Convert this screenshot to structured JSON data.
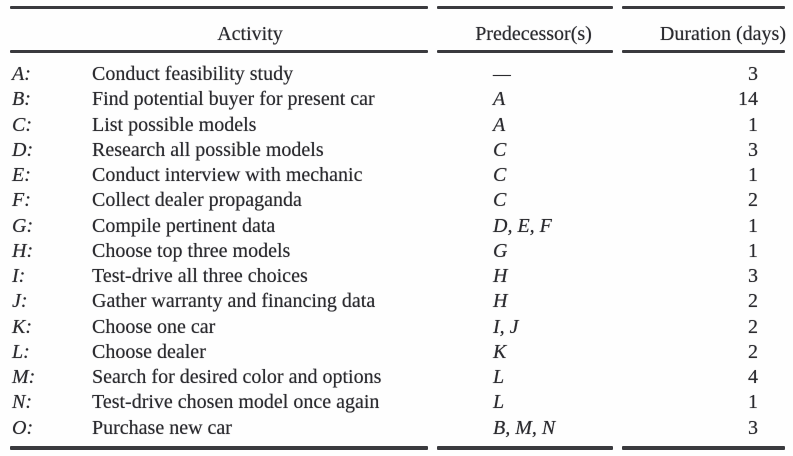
{
  "colors": {
    "text": "#2b2b2f",
    "rule": "#3a3a3e",
    "background": "#fefefe"
  },
  "table": {
    "headers": {
      "activity": "Activity",
      "predecessors": "Predecessor(s)",
      "duration": "Duration (days)"
    },
    "rows": [
      {
        "id": "A:",
        "description": "Conduct feasibility study",
        "predecessors": "—",
        "duration": "3"
      },
      {
        "id": "B:",
        "description": "Find potential buyer for present car",
        "predecessors": "A",
        "duration": "14"
      },
      {
        "id": "C:",
        "description": "List possible models",
        "predecessors": "A",
        "duration": "1"
      },
      {
        "id": "D:",
        "description": "Research all possible models",
        "predecessors": "C",
        "duration": "3"
      },
      {
        "id": "E:",
        "description": "Conduct interview with mechanic",
        "predecessors": "C",
        "duration": "1"
      },
      {
        "id": "F:",
        "description": "Collect dealer propaganda",
        "predecessors": "C",
        "duration": "2"
      },
      {
        "id": "G:",
        "description": "Compile pertinent data",
        "predecessors": "D, E, F",
        "duration": "1"
      },
      {
        "id": "H:",
        "description": "Choose top three models",
        "predecessors": "G",
        "duration": "1"
      },
      {
        "id": "I:",
        "description": "Test-drive all three choices",
        "predecessors": "H",
        "duration": "3"
      },
      {
        "id": "J:",
        "description": "Gather warranty and financing data",
        "predecessors": "H",
        "duration": "2"
      },
      {
        "id": "K:",
        "description": "Choose one car",
        "predecessors": "I, J",
        "duration": "2"
      },
      {
        "id": "L:",
        "description": "Choose dealer",
        "predecessors": "K",
        "duration": "2"
      },
      {
        "id": "M:",
        "description": "Search for desired color and options",
        "predecessors": "L",
        "duration": "4"
      },
      {
        "id": "N:",
        "description": "Test-drive chosen model once again",
        "predecessors": "L",
        "duration": "1"
      },
      {
        "id": "O:",
        "description": "Purchase new car",
        "predecessors": "B, M, N",
        "duration": "3"
      }
    ]
  }
}
